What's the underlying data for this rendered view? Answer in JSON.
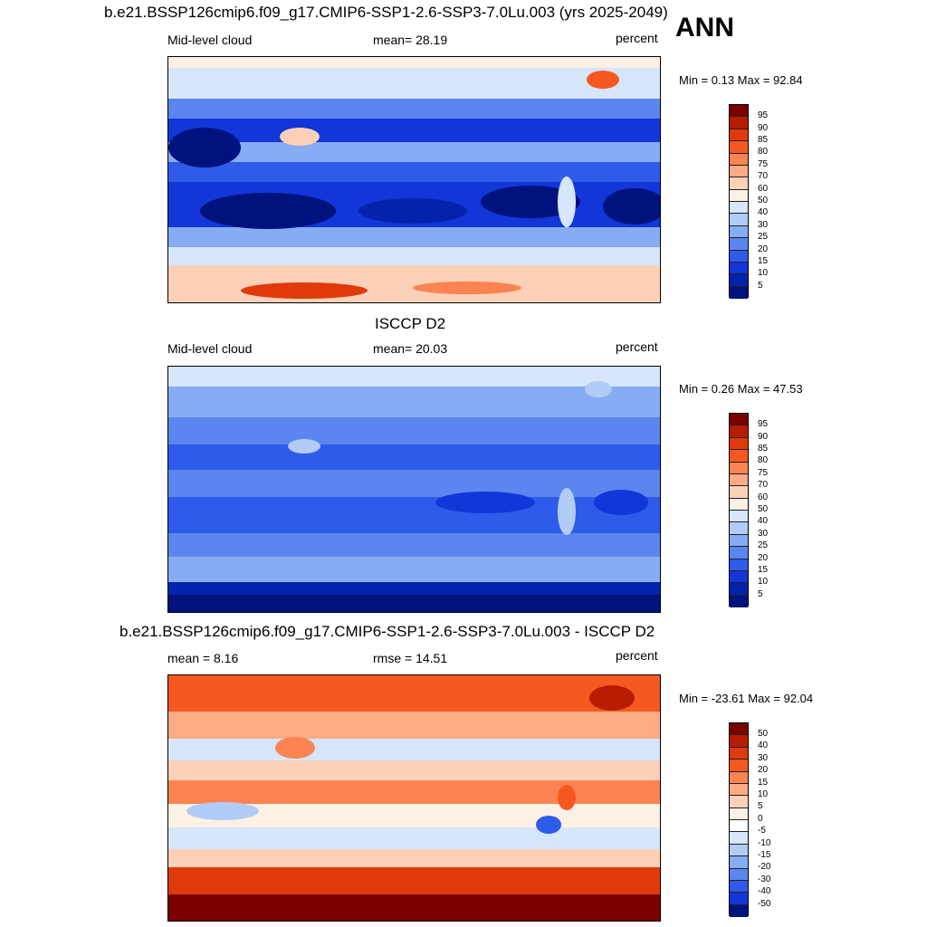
{
  "season_label": "ANN",
  "panels": [
    {
      "id": "model",
      "title": "b.e21.BSSP126cmip6.f09_g17.CMIP6-SSP1-2.6-SSP3-7.0Lu.003 (yrs 2025-2049)",
      "left_label": "Mid-level cloud",
      "center_label": "mean=  28.19",
      "units": "percent",
      "minmax": "Min =   0.13 Max =  92.84",
      "colorbar": {
        "labels": [
          "95",
          "90",
          "85",
          "80",
          "75",
          "70",
          "60",
          "50",
          "40",
          "30",
          "25",
          "20",
          "15",
          "10",
          "5"
        ],
        "colors": [
          "#7a0000",
          "#b81c00",
          "#e03a0c",
          "#f5591f",
          "#fb8452",
          "#fcab84",
          "#fdd1b7",
          "#fdf0e4",
          "#d6e6fb",
          "#b0ccf7",
          "#86acf4",
          "#5b86ef",
          "#2f5bea",
          "#1236d8",
          "#0423ad",
          "#00127d"
        ]
      }
    },
    {
      "id": "obs",
      "title": "ISCCP D2",
      "left_label": "Mid-level cloud",
      "center_label": "mean=  20.03",
      "units": "percent",
      "minmax": "Min =   0.26 Max =  47.53",
      "colorbar": {
        "labels": [
          "95",
          "90",
          "85",
          "80",
          "75",
          "70",
          "60",
          "50",
          "40",
          "30",
          "25",
          "20",
          "15",
          "10",
          "5"
        ],
        "colors": [
          "#7a0000",
          "#b81c00",
          "#e03a0c",
          "#f5591f",
          "#fb8452",
          "#fcab84",
          "#fdd1b7",
          "#fdf0e4",
          "#d6e6fb",
          "#b0ccf7",
          "#86acf4",
          "#5b86ef",
          "#2f5bea",
          "#1236d8",
          "#0423ad",
          "#00127d"
        ]
      }
    },
    {
      "id": "diff",
      "title": "b.e21.BSSP126cmip6.f09_g17.CMIP6-SSP1-2.6-SSP3-7.0Lu.003 - ISCCP D2",
      "left_label": "mean =   8.16",
      "center_label": "rmse =  14.51",
      "units": "percent",
      "minmax": "Min = -23.61 Max =  92.04",
      "colorbar": {
        "labels": [
          "50",
          "40",
          "30",
          "20",
          "15",
          "10",
          "5",
          "0",
          "-5",
          "-10",
          "-15",
          "-20",
          "-30",
          "-40",
          "-50"
        ],
        "colors": [
          "#7a0000",
          "#b81c00",
          "#e03a0c",
          "#f5591f",
          "#fb8452",
          "#fcab84",
          "#fdd1b7",
          "#fdf0e4",
          "#ffffff",
          "#d6e6fb",
          "#b0ccf7",
          "#86acf4",
          "#5b86ef",
          "#2f5bea",
          "#1236d8",
          "#00127d"
        ]
      }
    }
  ]
}
